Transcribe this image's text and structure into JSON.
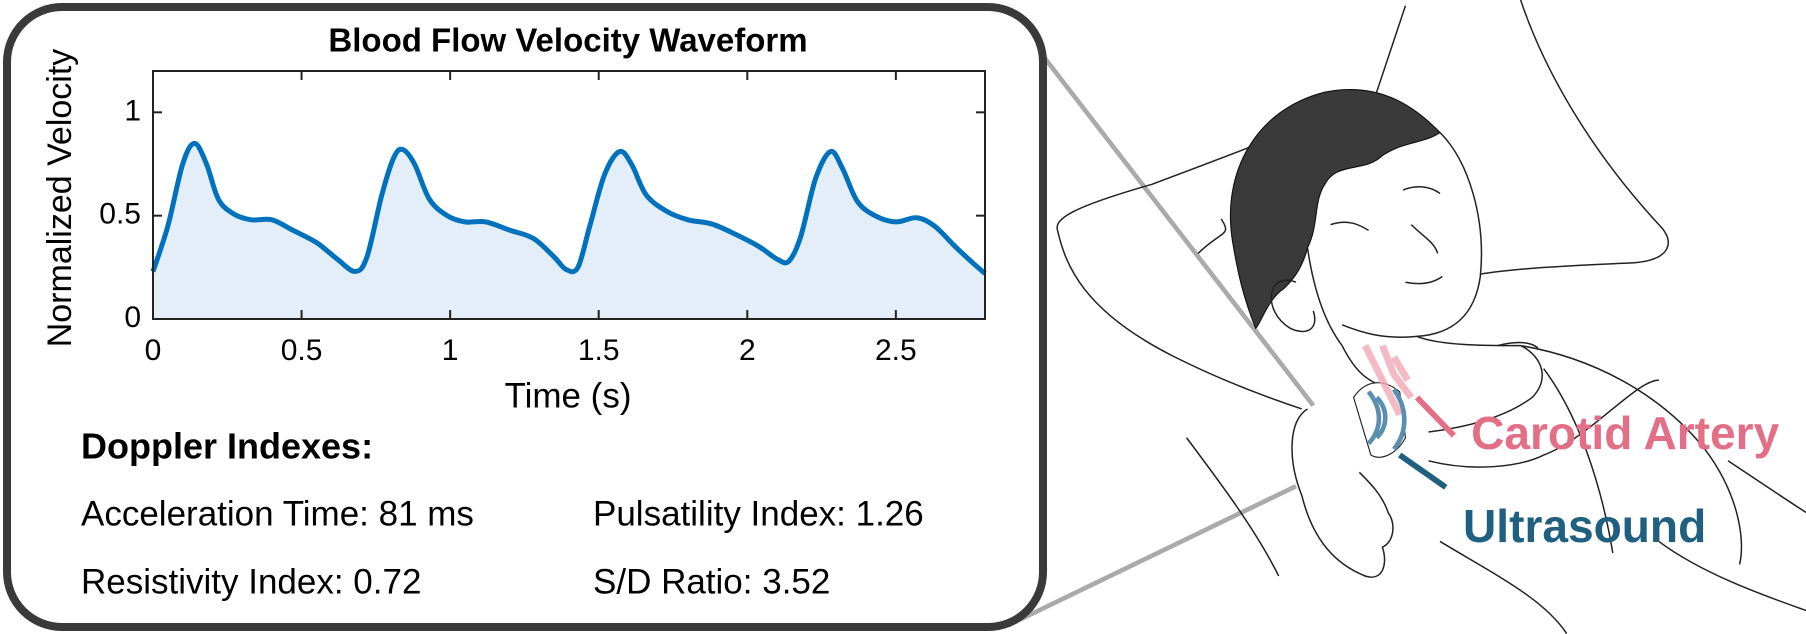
{
  "chart_data": {
    "type": "line",
    "title": "Blood Flow Velocity Waveform",
    "x_label": "Time (s)",
    "y_label": "Normalized Velocity",
    "x": [
      0,
      0.05,
      0.1,
      0.14,
      0.18,
      0.22,
      0.27,
      0.33,
      0.4,
      0.47,
      0.55,
      0.62,
      0.68,
      0.72,
      0.77,
      0.81,
      0.84,
      0.88,
      0.93,
      0.99,
      1.05,
      1.12,
      1.2,
      1.28,
      1.35,
      1.39,
      1.43,
      1.47,
      1.52,
      1.57,
      1.61,
      1.66,
      1.73,
      1.8,
      1.88,
      1.96,
      2.04,
      2.1,
      2.14,
      2.18,
      2.23,
      2.28,
      2.32,
      2.37,
      2.43,
      2.5,
      2.57,
      2.63,
      2.7,
      2.76,
      2.8
    ],
    "values": [
      0.23,
      0.45,
      0.75,
      0.85,
      0.75,
      0.58,
      0.51,
      0.48,
      0.48,
      0.43,
      0.37,
      0.29,
      0.23,
      0.3,
      0.6,
      0.78,
      0.82,
      0.75,
      0.58,
      0.5,
      0.47,
      0.47,
      0.43,
      0.39,
      0.3,
      0.24,
      0.25,
      0.45,
      0.7,
      0.81,
      0.75,
      0.6,
      0.52,
      0.48,
      0.46,
      0.41,
      0.35,
      0.29,
      0.28,
      0.4,
      0.68,
      0.81,
      0.73,
      0.57,
      0.5,
      0.47,
      0.49,
      0.45,
      0.35,
      0.27,
      0.22
    ],
    "color": "#0072bd",
    "fill": "#e3eef8",
    "xlim": [
      0,
      2.8
    ],
    "ylim": [
      0,
      1.2
    ],
    "xticks": [
      0,
      0.5,
      1,
      1.5,
      2,
      2.5
    ],
    "yticks": [
      0,
      0.5,
      1
    ]
  },
  "indexes": {
    "heading": "Doppler Indexes:",
    "items": [
      "Acceleration Time: 81 ms",
      "Pulsatility Index: 1.26",
      "Resistivity Index: 0.72",
      "S/D Ratio: 3.52"
    ]
  },
  "illustration": {
    "artery_label": "Carotid Artery",
    "probe_label": "Ultrasound"
  }
}
